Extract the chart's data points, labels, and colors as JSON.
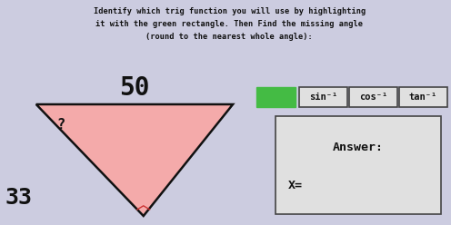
{
  "title_line1": "Identify which trig function you will use by highlighting",
  "title_line2": "it with the green rectangle. Then Find the missing angle",
  "title_line3": "(round to the nearest whole angle):",
  "bg_color": "#cccce0",
  "triangle_fill": "#f4aaaa",
  "triangle_stroke": "#111111",
  "label_50": "50",
  "label_33": "33",
  "label_q": "?",
  "green_color": "#44bb44",
  "sin_label": "sin⁻¹",
  "cos_label": "cos⁻¹",
  "tan_label": "tan⁻¹",
  "answer_label": "Answer:",
  "x_label": "X=",
  "font_color": "#111111",
  "box_bg": "#e0e0e0",
  "box_border": "#444444",
  "right_angle_color": "#cc3333"
}
